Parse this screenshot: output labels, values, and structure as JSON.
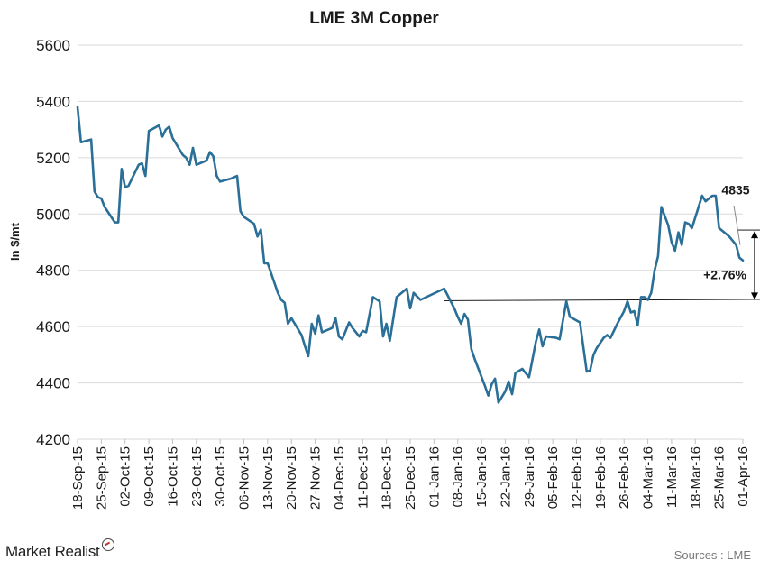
{
  "chart_data": {
    "type": "line",
    "title": "LME 3M Copper",
    "ylabel": "In $/mt",
    "xlabel": "",
    "ylim": [
      4200,
      5600
    ],
    "yticks": [
      4200,
      4400,
      4600,
      4800,
      5000,
      5200,
      5400,
      5600
    ],
    "grid": true,
    "legend": "none",
    "x_tick_labels": [
      "18-Sep-15",
      "25-Sep-15",
      "02-Oct-15",
      "09-Oct-15",
      "16-Oct-15",
      "23-Oct-15",
      "30-Oct-15",
      "06-Nov-15",
      "13-Nov-15",
      "20-Nov-15",
      "27-Nov-15",
      "04-Dec-15",
      "11-Dec-15",
      "18-Dec-15",
      "25-Dec-15",
      "01-Jan-16",
      "08-Jan-16",
      "15-Jan-16",
      "22-Jan-16",
      "29-Jan-16",
      "05-Feb-16",
      "12-Feb-16",
      "19-Feb-16",
      "26-Feb-16",
      "04-Mar-16",
      "11-Mar-16",
      "18-Mar-16",
      "25-Mar-16",
      "01-Apr-16"
    ],
    "x_start": "2015-09-18",
    "x_end": "2016-04-01",
    "series": [
      {
        "color": "#2a6f97",
        "points": [
          [
            "2015-09-18",
            5380
          ],
          [
            "2015-09-19",
            5255
          ],
          [
            "2015-09-22",
            5265
          ],
          [
            "2015-09-23",
            5080
          ],
          [
            "2015-09-24",
            5060
          ],
          [
            "2015-09-25",
            5055
          ],
          [
            "2015-09-26",
            5025
          ],
          [
            "2015-09-29",
            4970
          ],
          [
            "2015-09-30",
            4970
          ],
          [
            "2015-10-01",
            5160
          ],
          [
            "2015-10-02",
            5095
          ],
          [
            "2015-10-03",
            5100
          ],
          [
            "2015-10-06",
            5175
          ],
          [
            "2015-10-07",
            5180
          ],
          [
            "2015-10-08",
            5135
          ],
          [
            "2015-10-09",
            5295
          ],
          [
            "2015-10-12",
            5315
          ],
          [
            "2015-10-13",
            5275
          ],
          [
            "2015-10-14",
            5300
          ],
          [
            "2015-10-15",
            5310
          ],
          [
            "2015-10-16",
            5270
          ],
          [
            "2015-10-19",
            5210
          ],
          [
            "2015-10-20",
            5200
          ],
          [
            "2015-10-21",
            5175
          ],
          [
            "2015-10-22",
            5235
          ],
          [
            "2015-10-23",
            5175
          ],
          [
            "2015-10-26",
            5190
          ],
          [
            "2015-10-27",
            5220
          ],
          [
            "2015-10-28",
            5205
          ],
          [
            "2015-10-29",
            5135
          ],
          [
            "2015-10-30",
            5115
          ],
          [
            "2015-11-02",
            5125
          ],
          [
            "2015-11-03",
            5130
          ],
          [
            "2015-11-04",
            5135
          ],
          [
            "2015-11-05",
            5010
          ],
          [
            "2015-11-06",
            4990
          ],
          [
            "2015-11-09",
            4965
          ],
          [
            "2015-11-10",
            4920
          ],
          [
            "2015-11-11",
            4945
          ],
          [
            "2015-11-12",
            4825
          ],
          [
            "2015-11-13",
            4825
          ],
          [
            "2015-11-16",
            4720
          ],
          [
            "2015-11-17",
            4695
          ],
          [
            "2015-11-18",
            4685
          ],
          [
            "2015-11-19",
            4610
          ],
          [
            "2015-11-20",
            4630
          ],
          [
            "2015-11-23",
            4570
          ],
          [
            "2015-11-24",
            4530
          ],
          [
            "2015-11-25",
            4495
          ],
          [
            "2015-11-26",
            4610
          ],
          [
            "2015-11-27",
            4575
          ],
          [
            "2015-11-28",
            4640
          ],
          [
            "2015-11-29",
            4580
          ],
          [
            "2015-12-02",
            4595
          ],
          [
            "2015-12-03",
            4630
          ],
          [
            "2015-12-04",
            4565
          ],
          [
            "2015-12-05",
            4555
          ],
          [
            "2015-12-07",
            4615
          ],
          [
            "2015-12-08",
            4595
          ],
          [
            "2015-12-10",
            4565
          ],
          [
            "2015-12-11",
            4585
          ],
          [
            "2015-12-12",
            4580
          ],
          [
            "2015-12-14",
            4705
          ],
          [
            "2015-12-16",
            4690
          ],
          [
            "2015-12-17",
            4565
          ],
          [
            "2015-12-18",
            4610
          ],
          [
            "2015-12-19",
            4550
          ],
          [
            "2015-12-21",
            4705
          ],
          [
            "2015-12-22",
            4715
          ],
          [
            "2015-12-24",
            4735
          ],
          [
            "2015-12-25",
            4665
          ],
          [
            "2015-12-26",
            4720
          ],
          [
            "2015-12-28",
            4695
          ],
          [
            "2016-01-04",
            4735
          ],
          [
            "2016-01-07",
            4665
          ],
          [
            "2016-01-08",
            4635
          ],
          [
            "2016-01-09",
            4610
          ],
          [
            "2016-01-10",
            4645
          ],
          [
            "2016-01-11",
            4625
          ],
          [
            "2016-01-12",
            4520
          ],
          [
            "2016-01-13",
            4485
          ],
          [
            "2016-01-16",
            4390
          ],
          [
            "2016-01-17",
            4355
          ],
          [
            "2016-01-18",
            4395
          ],
          [
            "2016-01-19",
            4415
          ],
          [
            "2016-01-20",
            4330
          ],
          [
            "2016-01-22",
            4370
          ],
          [
            "2016-01-23",
            4405
          ],
          [
            "2016-01-24",
            4360
          ],
          [
            "2016-01-25",
            4435
          ],
          [
            "2016-01-27",
            4450
          ],
          [
            "2016-01-29",
            4420
          ],
          [
            "2016-01-31",
            4545
          ],
          [
            "2016-02-01",
            4590
          ],
          [
            "2016-02-02",
            4530
          ],
          [
            "2016-02-03",
            4565
          ],
          [
            "2016-02-06",
            4560
          ],
          [
            "2016-02-07",
            4555
          ],
          [
            "2016-02-09",
            4690
          ],
          [
            "2016-02-10",
            4635
          ],
          [
            "2016-02-13",
            4615
          ],
          [
            "2016-02-15",
            4440
          ],
          [
            "2016-02-16",
            4445
          ],
          [
            "2016-02-17",
            4500
          ],
          [
            "2016-02-18",
            4525
          ],
          [
            "2016-02-20",
            4560
          ],
          [
            "2016-02-21",
            4570
          ],
          [
            "2016-02-22",
            4560
          ],
          [
            "2016-02-24",
            4610
          ],
          [
            "2016-02-26",
            4655
          ],
          [
            "2016-02-27",
            4690
          ],
          [
            "2016-02-28",
            4650
          ],
          [
            "2016-02-29",
            4655
          ],
          [
            "2016-03-01",
            4605
          ],
          [
            "2016-03-02",
            4705
          ],
          [
            "2016-03-03",
            4705
          ],
          [
            "2016-03-04",
            4695
          ],
          [
            "2016-03-05",
            4720
          ],
          [
            "2016-03-06",
            4800
          ],
          [
            "2016-03-07",
            4850
          ],
          [
            "2016-03-08",
            5025
          ],
          [
            "2016-03-10",
            4960
          ],
          [
            "2016-03-11",
            4900
          ],
          [
            "2016-03-12",
            4870
          ],
          [
            "2016-03-13",
            4935
          ],
          [
            "2016-03-14",
            4890
          ],
          [
            "2016-03-15",
            4970
          ],
          [
            "2016-03-16",
            4965
          ],
          [
            "2016-03-17",
            4950
          ],
          [
            "2016-03-20",
            5065
          ],
          [
            "2016-03-21",
            5045
          ],
          [
            "2016-03-22",
            5055
          ],
          [
            "2016-03-23",
            5065
          ],
          [
            "2016-03-24",
            5065
          ],
          [
            "2016-03-25",
            4950
          ],
          [
            "2016-03-28",
            4920
          ],
          [
            "2016-03-30",
            4890
          ],
          [
            "2016-03-31",
            4845
          ],
          [
            "2016-04-01",
            4835
          ]
        ]
      }
    ],
    "annotations": {
      "last_value": "4835",
      "change": "+2.76%",
      "reference_value": 4692,
      "arrow_from": 4692,
      "arrow_to": 4943
    }
  },
  "footer": {
    "brand": "Market Realist",
    "source": "Sources : LME"
  }
}
